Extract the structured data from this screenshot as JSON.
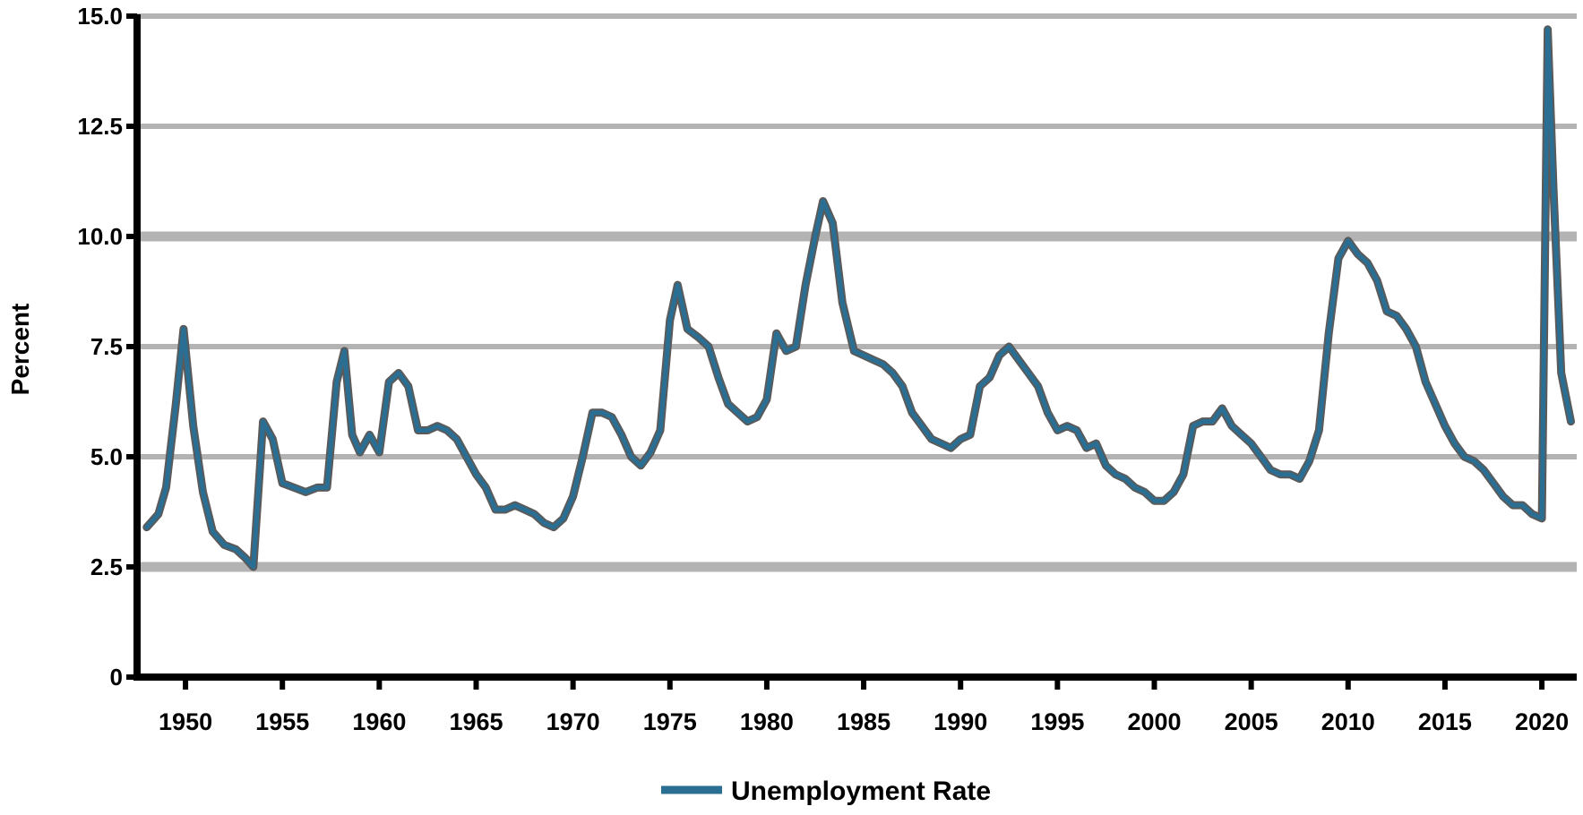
{
  "chart_data": {
    "type": "line",
    "title": "",
    "xlabel": "",
    "ylabel": "Percent",
    "ylim": [
      0,
      15
    ],
    "xlim": [
      1947.5,
      2021.8
    ],
    "y_ticks": [
      "0",
      "2.5",
      "5.0",
      "7.5",
      "10.0",
      "12.5",
      "15.0"
    ],
    "x_tick_labels": [
      "1950",
      "1955",
      "1960",
      "1965",
      "1970",
      "1975",
      "1980",
      "1985",
      "1990",
      "1995",
      "2000",
      "2005",
      "2010",
      "2015",
      "2020"
    ],
    "grid": true,
    "legend_position": "bottom",
    "colors": {
      "series": "#2a6f93",
      "grid": "#b3b3b3",
      "axis": "#000000"
    },
    "series": [
      {
        "name": "Unemployment Rate",
        "x": [
          1948.0,
          1948.6,
          1949.0,
          1949.5,
          1949.9,
          1950.4,
          1950.9,
          1951.4,
          1952.0,
          1952.6,
          1953.1,
          1953.5,
          1954.0,
          1954.5,
          1955.0,
          1955.6,
          1956.2,
          1956.8,
          1957.3,
          1957.8,
          1958.2,
          1958.6,
          1959.0,
          1959.5,
          1960.0,
          1960.5,
          1961.0,
          1961.5,
          1962.0,
          1962.5,
          1963.0,
          1963.5,
          1964.0,
          1964.5,
          1965.0,
          1965.5,
          1966.0,
          1966.5,
          1967.0,
          1967.5,
          1968.0,
          1968.5,
          1969.0,
          1969.5,
          1970.0,
          1970.5,
          1971.0,
          1971.5,
          1972.0,
          1972.5,
          1973.0,
          1973.5,
          1974.0,
          1974.5,
          1975.0,
          1975.4,
          1975.9,
          1976.5,
          1977.0,
          1977.5,
          1978.0,
          1978.5,
          1979.0,
          1979.5,
          1980.0,
          1980.5,
          1981.0,
          1981.5,
          1982.0,
          1982.5,
          1982.9,
          1983.4,
          1983.9,
          1984.5,
          1985.0,
          1985.5,
          1986.0,
          1986.5,
          1987.0,
          1987.5,
          1988.0,
          1988.5,
          1989.0,
          1989.5,
          1990.0,
          1990.5,
          1991.0,
          1991.5,
          1992.0,
          1992.5,
          1993.0,
          1993.5,
          1994.0,
          1994.5,
          1995.0,
          1995.5,
          1996.0,
          1996.5,
          1997.0,
          1997.5,
          1998.0,
          1998.5,
          1999.0,
          1999.5,
          2000.0,
          2000.5,
          2001.0,
          2001.5,
          2002.0,
          2002.5,
          2003.0,
          2003.5,
          2004.0,
          2004.5,
          2005.0,
          2005.5,
          2006.0,
          2006.5,
          2007.0,
          2007.5,
          2008.0,
          2008.5,
          2009.0,
          2009.5,
          2010.0,
          2010.5,
          2011.0,
          2011.5,
          2012.0,
          2012.5,
          2013.0,
          2013.5,
          2014.0,
          2014.5,
          2015.0,
          2015.5,
          2016.0,
          2016.5,
          2017.0,
          2017.5,
          2018.0,
          2018.5,
          2019.0,
          2019.5,
          2020.0,
          2020.3,
          2020.6,
          2021.0,
          2021.5
        ],
        "y": [
          3.4,
          3.7,
          4.3,
          6.2,
          7.9,
          5.7,
          4.2,
          3.3,
          3.0,
          2.9,
          2.7,
          2.5,
          5.8,
          5.4,
          4.4,
          4.3,
          4.2,
          4.3,
          4.3,
          6.7,
          7.4,
          5.5,
          5.1,
          5.5,
          5.1,
          6.7,
          6.9,
          6.6,
          5.6,
          5.6,
          5.7,
          5.6,
          5.4,
          5.0,
          4.6,
          4.3,
          3.8,
          3.8,
          3.9,
          3.8,
          3.7,
          3.5,
          3.4,
          3.6,
          4.1,
          5.0,
          6.0,
          6.0,
          5.9,
          5.5,
          5.0,
          4.8,
          5.1,
          5.6,
          8.1,
          8.9,
          7.9,
          7.7,
          7.5,
          6.8,
          6.2,
          6.0,
          5.8,
          5.9,
          6.3,
          7.8,
          7.4,
          7.5,
          8.9,
          10.0,
          10.8,
          10.3,
          8.5,
          7.4,
          7.3,
          7.2,
          7.1,
          6.9,
          6.6,
          6.0,
          5.7,
          5.4,
          5.3,
          5.2,
          5.4,
          5.5,
          6.6,
          6.8,
          7.3,
          7.5,
          7.2,
          6.9,
          6.6,
          6.0,
          5.6,
          5.7,
          5.6,
          5.2,
          5.3,
          4.8,
          4.6,
          4.5,
          4.3,
          4.2,
          4.0,
          4.0,
          4.2,
          4.6,
          5.7,
          5.8,
          5.8,
          6.1,
          5.7,
          5.5,
          5.3,
          5.0,
          4.7,
          4.6,
          4.6,
          4.5,
          4.9,
          5.6,
          7.8,
          9.5,
          9.9,
          9.6,
          9.4,
          9.0,
          8.3,
          8.2,
          7.9,
          7.5,
          6.7,
          6.2,
          5.7,
          5.3,
          5.0,
          4.9,
          4.7,
          4.4,
          4.1,
          3.9,
          3.9,
          3.7,
          3.6,
          14.7,
          11.1,
          6.9,
          5.8
        ]
      }
    ]
  },
  "legend": {
    "label": "Unemployment Rate"
  }
}
